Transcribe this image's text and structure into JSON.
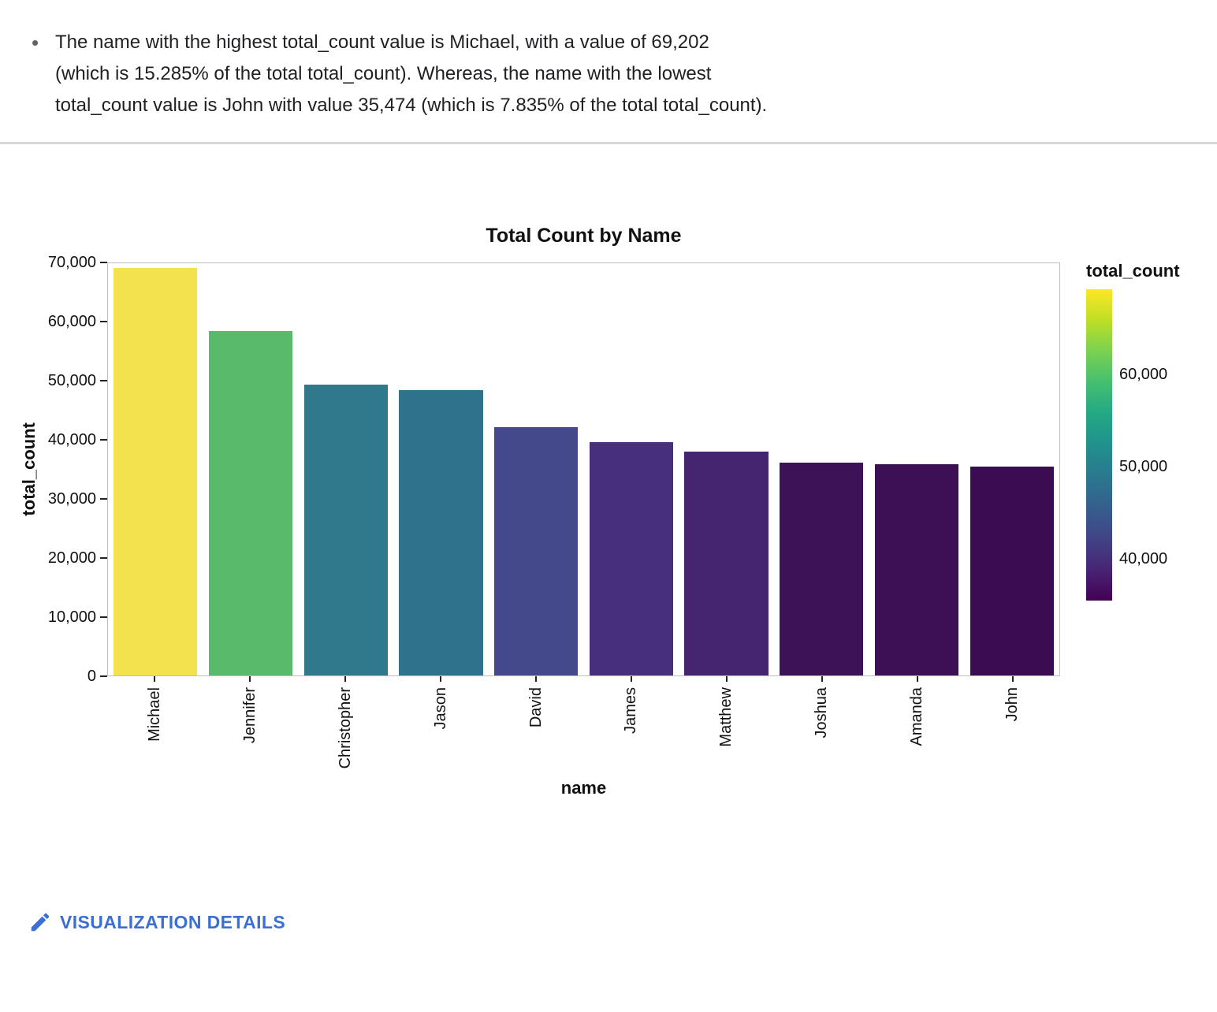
{
  "insight": {
    "bullet": "•",
    "text": "The name with the highest total_count value is Michael, with a value of 69,202 (which is 15.285% of the total total_count). Whereas, the name with the lowest total_count value is John with value 35,474 (which is 7.835% of the total total_count)."
  },
  "chart_data": {
    "type": "bar",
    "title": "Total Count by Name",
    "xlabel": "name",
    "ylabel": "total_count",
    "categories": [
      "Michael",
      "Jennifer",
      "Christopher",
      "Jason",
      "David",
      "James",
      "Matthew",
      "Joshua",
      "Amanda",
      "John"
    ],
    "values": [
      69202,
      58500,
      49400,
      48400,
      42100,
      39600,
      38000,
      36100,
      35900,
      35474
    ],
    "bar_colors": [
      "#f3e14d",
      "#59ba6c",
      "#30788c",
      "#2e728c",
      "#44498b",
      "#472f7d",
      "#452470",
      "#3e1257",
      "#3d0f55",
      "#3c0c53"
    ],
    "ylim": [
      0,
      70000
    ],
    "yticks": [
      0,
      10000,
      20000,
      30000,
      40000,
      50000,
      60000,
      70000
    ],
    "ytick_labels": [
      "0",
      "10,000",
      "20,000",
      "30,000",
      "40,000",
      "50,000",
      "60,000",
      "70,000"
    ],
    "grid": false,
    "highlight": {
      "highest": {
        "name": "Michael",
        "value": "69,202",
        "pct": "15.285%"
      },
      "lowest": {
        "name": "John",
        "value": "35,474",
        "pct": "7.835%"
      }
    },
    "legend": {
      "title": "total_count",
      "position": "right",
      "colormap": "viridis",
      "min": 35474,
      "max": 69202,
      "ticks": [
        {
          "value": 60000,
          "label": "60,000"
        },
        {
          "value": 50000,
          "label": "50,000"
        },
        {
          "value": 40000,
          "label": "40,000"
        }
      ]
    }
  },
  "footer": {
    "details_label": "VISUALIZATION DETAILS",
    "icon": "pencil-icon",
    "link_color": "#3b6fd4"
  },
  "colors": {
    "divider": "#d8d8d8",
    "plot_border": "#bfbfbf",
    "text": "#202124"
  }
}
